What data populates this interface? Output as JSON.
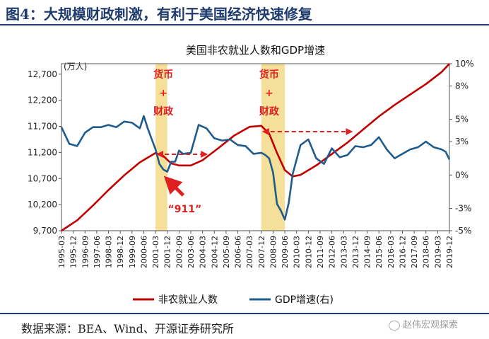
{
  "figure_title": "图4：大规模财政刺激，有利于美国经济快速修复",
  "source": "数据来源：BEA、Wind、开源证券研究所",
  "watermark": "赵伟宏观探索",
  "colors": {
    "employment": "#c00000",
    "gdp": "#1f5b8c",
    "shade": "#f5d987",
    "annotation": "#e02020",
    "title_blue": "#1f3b6e"
  },
  "chart_data": {
    "type": "line",
    "title": "美国非农就业人数和GDP增速",
    "ylabel_left": "(万人)",
    "ylim_left": [
      9700,
      12900
    ],
    "yticks_left": [
      "9,700",
      "10,200",
      "10,700",
      "11,200",
      "11,700",
      "12,200",
      "12,700"
    ],
    "ylim_right": [
      -5,
      10
    ],
    "yticks_right": [
      "-5%",
      "-3%",
      "0%",
      "3%",
      "5%",
      "8%",
      "10%"
    ],
    "x_tick_labels": [
      "1995-03",
      "1995-12",
      "1996-09",
      "1997-06",
      "1998-03",
      "1998-12",
      "1999-09",
      "2000-06",
      "2001-03",
      "2001-12",
      "2002-09",
      "2003-06",
      "2004-03",
      "2004-12",
      "2005-09",
      "2006-06",
      "2007-03",
      "2007-12",
      "2008-09",
      "2009-06",
      "2010-03",
      "2010-12",
      "2011-09",
      "2012-06",
      "2013-03",
      "2013-12",
      "2014-09",
      "2015-06",
      "2016-03",
      "2016-12",
      "2017-09",
      "2018-06",
      "2019-03",
      "2019-12"
    ],
    "legend_position": "bottom",
    "series": [
      {
        "name": "非农就业人数",
        "axis": "left",
        "x": [
          "1995-03",
          "1996-03",
          "1997-03",
          "1998-03",
          "1999-03",
          "2000-03",
          "2001-03",
          "2001-09",
          "2002-03",
          "2002-09",
          "2003-06",
          "2004-03",
          "2005-03",
          "2006-03",
          "2007-03",
          "2007-12",
          "2008-06",
          "2008-12",
          "2009-06",
          "2009-12",
          "2010-06",
          "2011-06",
          "2012-06",
          "2013-06",
          "2014-06",
          "2015-06",
          "2016-06",
          "2017-06",
          "2018-06",
          "2019-06",
          "2019-12"
        ],
        "values": [
          9700,
          9900,
          10180,
          10480,
          10760,
          11010,
          11190,
          11130,
          10990,
          10950,
          10950,
          11050,
          11280,
          11520,
          11690,
          11710,
          11560,
          11190,
          10860,
          10740,
          10770,
          10950,
          11170,
          11390,
          11640,
          11890,
          12110,
          12310,
          12510,
          12740,
          12900
        ]
      },
      {
        "name": "GDP增速(右)",
        "axis": "right",
        "x": [
          "1995-03",
          "1995-09",
          "1996-03",
          "1996-09",
          "1997-03",
          "1997-09",
          "1998-03",
          "1998-09",
          "1999-03",
          "1999-09",
          "2000-03",
          "2000-06",
          "2000-09",
          "2001-03",
          "2001-06",
          "2001-09",
          "2001-12",
          "2002-03",
          "2002-06",
          "2002-09",
          "2002-12",
          "2003-06",
          "2003-12",
          "2004-06",
          "2004-12",
          "2005-06",
          "2005-12",
          "2006-06",
          "2006-12",
          "2007-06",
          "2007-12",
          "2008-03",
          "2008-06",
          "2008-09",
          "2008-12",
          "2009-03",
          "2009-06",
          "2009-09",
          "2009-12",
          "2010-06",
          "2010-12",
          "2011-06",
          "2011-12",
          "2012-06",
          "2012-12",
          "2013-06",
          "2013-12",
          "2014-06",
          "2014-12",
          "2015-06",
          "2015-12",
          "2016-06",
          "2016-12",
          "2017-06",
          "2017-12",
          "2018-06",
          "2018-12",
          "2019-06",
          "2019-09",
          "2019-12"
        ],
        "values": [
          4.3,
          2.8,
          2.6,
          3.8,
          4.3,
          4.3,
          4.5,
          4.3,
          4.8,
          4.7,
          4.2,
          5.3,
          4.2,
          2.3,
          1.0,
          0.5,
          0.3,
          1.2,
          1.2,
          2.2,
          1.9,
          2.0,
          4.5,
          4.2,
          3.3,
          3.1,
          3.2,
          2.7,
          2.6,
          1.9,
          2.0,
          1.8,
          1.5,
          0.2,
          -2.6,
          -3.2,
          -4.0,
          -2.5,
          0.1,
          2.7,
          3.2,
          1.5,
          1.0,
          2.4,
          1.6,
          1.8,
          2.6,
          2.5,
          2.7,
          3.4,
          2.3,
          1.5,
          1.9,
          2.3,
          2.5,
          3.0,
          2.5,
          2.3,
          2.1,
          1.4
        ]
      }
    ],
    "shaded_periods": [
      [
        "2001-03",
        "2001-12"
      ],
      [
        "2007-12",
        "2009-06"
      ]
    ],
    "annotations": [
      {
        "label": "货币+财政",
        "lines": [
          "货币",
          "+",
          "财政"
        ],
        "x": "2001-09"
      },
      {
        "label": "货币+财政",
        "lines": [
          "货币",
          "+",
          "财政"
        ],
        "x": "2008-06"
      },
      {
        "label": "“911”",
        "x": "2002-09"
      }
    ],
    "arrows": [
      {
        "from": "2001-03",
        "to": "2004-06",
        "style": "dashed-double"
      },
      {
        "from": "2007-12",
        "to": "2013-09",
        "style": "dashed-double"
      }
    ]
  }
}
